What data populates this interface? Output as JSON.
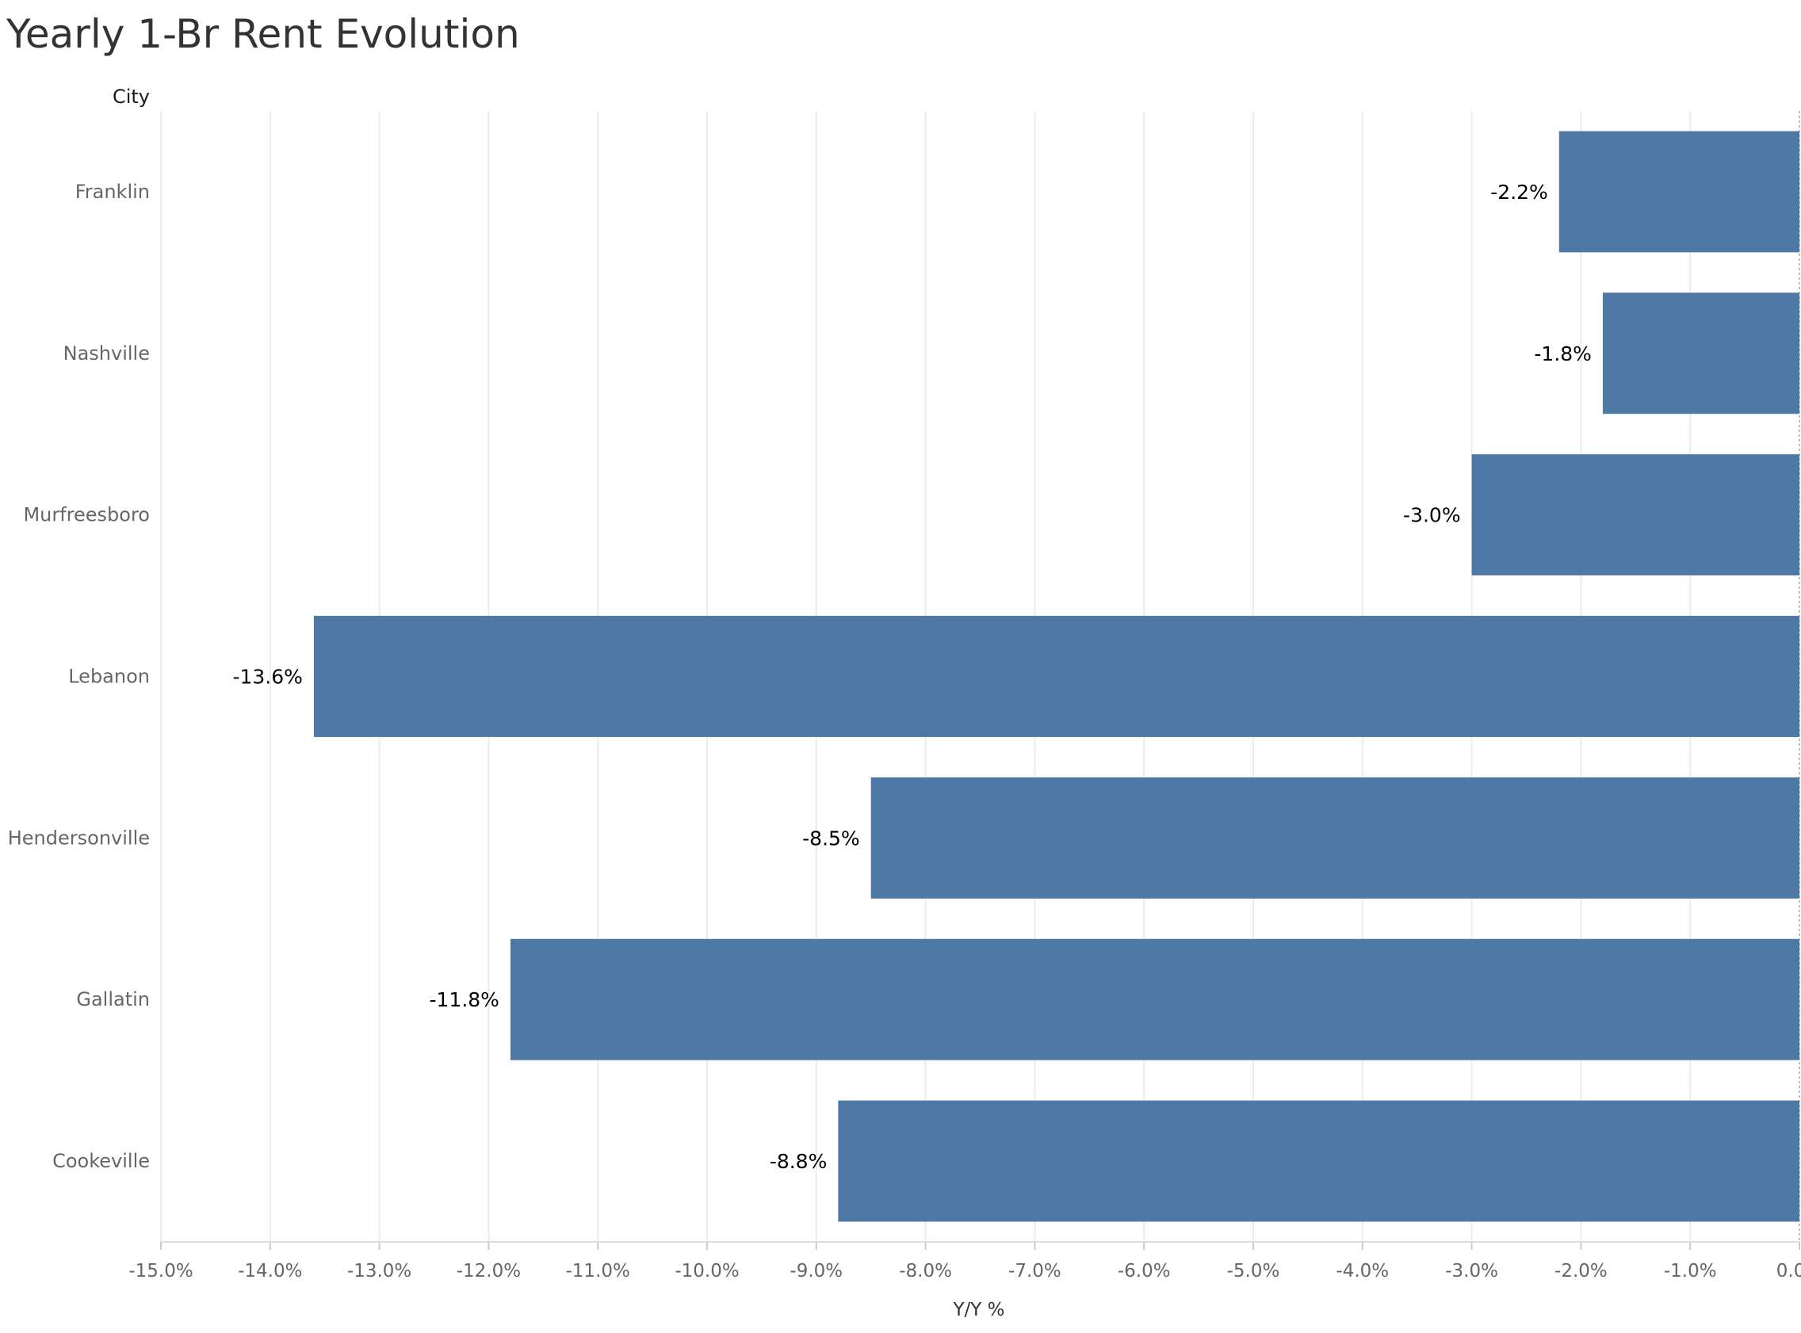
{
  "chart_data": {
    "type": "bar",
    "orientation": "horizontal",
    "title": "Yearly 1-Br Rent Evolution",
    "ylabel": "City",
    "xlabel": "Y/Y %",
    "categories": [
      "Franklin",
      "Nashville",
      "Murfreesboro",
      "Lebanon",
      "Hendersonville",
      "Gallatin",
      "Cookeville"
    ],
    "values": [
      -2.2,
      -1.8,
      -3.0,
      -13.6,
      -8.5,
      -11.8,
      -8.8
    ],
    "data_labels": [
      "-2.2%",
      "-1.8%",
      "-3.0%",
      "-13.6%",
      "-8.5%",
      "-11.8%",
      "-8.8%"
    ],
    "xlim": [
      -15,
      0
    ],
    "x_ticks": [
      -15,
      -14,
      -13,
      -12,
      -11,
      -10,
      -9,
      -8,
      -7,
      -6,
      -5,
      -4,
      -3,
      -2,
      -1,
      0
    ],
    "x_tick_labels": [
      "-15.0%",
      "-14.0%",
      "-13.0%",
      "-12.0%",
      "-11.0%",
      "-10.0%",
      "-9.0%",
      "-8.0%",
      "-7.0%",
      "-6.0%",
      "-5.0%",
      "-4.0%",
      "-3.0%",
      "-2.0%",
      "-1.0%",
      "0.0%"
    ],
    "grid": true,
    "bar_color": "#4e79a7"
  }
}
